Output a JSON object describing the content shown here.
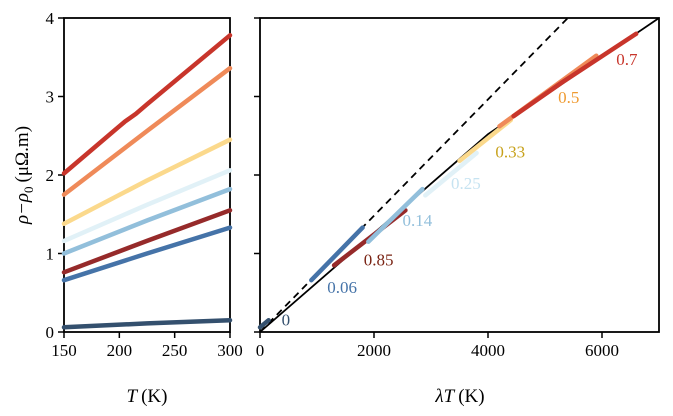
{
  "chart_data": [
    {
      "id": "left",
      "type": "line",
      "xlabel_var": "T",
      "xlabel_unit": "(K)",
      "ylabel_main": "ρ−ρ",
      "ylabel_sub": "0",
      "ylabel_unit": "(μΩ.m)",
      "xlim": [
        150,
        300
      ],
      "ylim": [
        0,
        4
      ],
      "xticks": [
        150,
        200,
        250,
        300
      ],
      "xtick_labels": [
        "150",
        "200",
        "250",
        "300"
      ],
      "yticks": [
        0,
        1,
        2,
        3,
        4
      ],
      "ytick_labels": [
        "0",
        "1",
        "2",
        "3",
        "4"
      ],
      "series": [
        {
          "name": "0.7",
          "color": "#c8352b",
          "x": [
            150,
            200,
            205,
            215,
            225,
            300
          ],
          "y": [
            2.02,
            2.62,
            2.68,
            2.78,
            2.9,
            3.78
          ]
        },
        {
          "name": "0.5",
          "color": "#ef8a59",
          "x": [
            150,
            225,
            300
          ],
          "y": [
            1.75,
            2.56,
            3.36
          ]
        },
        {
          "name": "0.33",
          "color": "#fbd98c",
          "x": [
            150,
            225,
            300
          ],
          "y": [
            1.38,
            1.93,
            2.45
          ]
        },
        {
          "name": "0.25",
          "color": "#e1f1f7",
          "x": [
            150,
            225,
            300
          ],
          "y": [
            1.16,
            1.62,
            2.06
          ]
        },
        {
          "name": "0.14",
          "color": "#92bfdb",
          "x": [
            150,
            225,
            300
          ],
          "y": [
            1.0,
            1.42,
            1.82
          ]
        },
        {
          "name": "0.85",
          "color": "#962a2a",
          "x": [
            150,
            225,
            300
          ],
          "y": [
            0.76,
            1.16,
            1.55
          ]
        },
        {
          "name": "0.06",
          "color": "#4573a8",
          "x": [
            150,
            225,
            300
          ],
          "y": [
            0.66,
            1.0,
            1.33
          ]
        },
        {
          "name": "0",
          "color": "#34506e",
          "x": [
            150,
            225,
            300
          ],
          "y": [
            0.06,
            0.11,
            0.15
          ]
        }
      ]
    },
    {
      "id": "right",
      "type": "line",
      "xlabel_var": "λT",
      "xlabel_unit": "(K)",
      "xlim": [
        0,
        7000
      ],
      "ylim": [
        0,
        4
      ],
      "xticks": [
        0,
        2000,
        4000,
        6000
      ],
      "xtick_labels": [
        "0",
        "2000",
        "4000",
        "6000"
      ],
      "yticks": [
        0,
        1,
        2,
        3,
        4
      ],
      "reference_lines": [
        {
          "name": "dashed",
          "style": "dashed",
          "color": "#000000",
          "x": [
            0,
            5400
          ],
          "y": [
            0,
            4
          ]
        },
        {
          "name": "solid",
          "style": "solid",
          "color": "#000000",
          "x": [
            0,
            4000,
            7000
          ],
          "y": [
            0,
            2.52,
            4.0
          ]
        }
      ],
      "series": [
        {
          "name": "0",
          "color": "#34506e",
          "x": [
            0,
            150
          ],
          "y": [
            0.06,
            0.15
          ]
        },
        {
          "name": "0.06",
          "color": "#4573a8",
          "x": [
            900,
            1800
          ],
          "y": [
            0.66,
            1.33
          ]
        },
        {
          "name": "0.85",
          "color": "#962a2a",
          "x": [
            1300,
            2550
          ],
          "y": [
            0.85,
            1.55
          ]
        },
        {
          "name": "0.14",
          "color": "#92bfdb",
          "x": [
            1900,
            2850
          ],
          "y": [
            1.15,
            1.82
          ]
        },
        {
          "name": "0.25",
          "color": "#e1f1f7",
          "x": [
            2900,
            3800
          ],
          "y": [
            1.74,
            2.28
          ]
        },
        {
          "name": "0.33",
          "color": "#fbd98c",
          "x": [
            3500,
            4400
          ],
          "y": [
            2.18,
            2.7
          ]
        },
        {
          "name": "0.5",
          "color": "#ef8a59",
          "x": [
            4200,
            5900
          ],
          "y": [
            2.62,
            3.52
          ]
        },
        {
          "name": "0.7",
          "color": "#c8352b",
          "x": [
            4450,
            5300,
            6600
          ],
          "y": [
            2.75,
            3.18,
            3.8
          ]
        }
      ],
      "annotations": [
        {
          "text": "0",
          "color": "#34506e",
          "x": 380,
          "y": 0.08
        },
        {
          "text": "0.06",
          "color": "#4573a8",
          "x": 1180,
          "y": 0.5
        },
        {
          "text": "0.85",
          "color": "#7a2414",
          "x": 1820,
          "y": 0.85
        },
        {
          "text": "0.14",
          "color": "#92bfdb",
          "x": 2500,
          "y": 1.35
        },
        {
          "text": "0.25",
          "color": "#c6e3f1",
          "x": 3350,
          "y": 1.82
        },
        {
          "text": "0.33",
          "color": "#c7a11a",
          "x": 4130,
          "y": 2.22
        },
        {
          "text": "0.5",
          "color": "#ef9a30",
          "x": 5230,
          "y": 2.92
        },
        {
          "text": "0.7",
          "color": "#c8352b",
          "x": 6250,
          "y": 3.4
        }
      ]
    }
  ]
}
